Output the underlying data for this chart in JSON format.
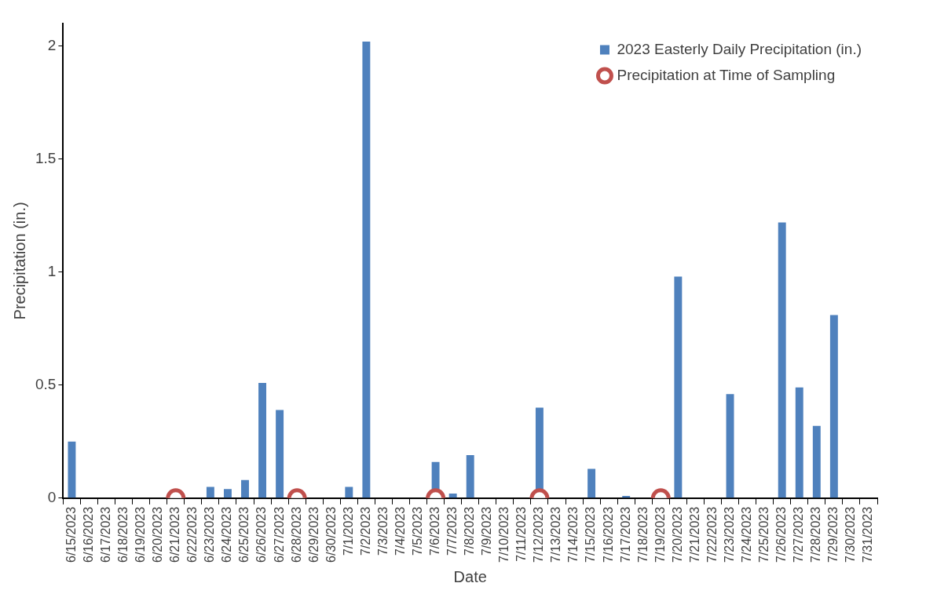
{
  "chart_data": {
    "type": "bar",
    "xlabel": "Date",
    "ylabel": "Precipitation (in.)",
    "categories": [
      "6/15/2023",
      "6/16/2023",
      "6/17/2023",
      "6/18/2023",
      "6/19/2023",
      "6/20/2023",
      "6/21/2023",
      "6/22/2023",
      "6/23/2023",
      "6/24/2023",
      "6/25/2023",
      "6/26/2023",
      "6/27/2023",
      "6/28/2023",
      "6/29/2023",
      "6/30/2023",
      "7/1/2023",
      "7/2/2023",
      "7/3/2023",
      "7/4/2023",
      "7/5/2023",
      "7/6/2023",
      "7/7/2023",
      "7/8/2023",
      "7/9/2023",
      "7/10/2023",
      "7/11/2023",
      "7/12/2023",
      "7/13/2023",
      "7/14/2023",
      "7/15/2023",
      "7/16/2023",
      "7/17/2023",
      "7/18/2023",
      "7/19/2023",
      "7/20/2023",
      "7/21/2023",
      "7/22/2023",
      "7/23/2023",
      "7/24/2023",
      "7/25/2023",
      "7/26/2023",
      "7/27/2023",
      "7/28/2023",
      "7/29/2023",
      "7/30/2023",
      "7/31/2023"
    ],
    "series": [
      {
        "name": "2023 Easterly Daily Precipitation (in.)",
        "color": "#4f81bd",
        "values": [
          0.25,
          0,
          0,
          0,
          0,
          0,
          0,
          0,
          0.05,
          0.04,
          0.08,
          0.51,
          0.39,
          0,
          0,
          0,
          0.05,
          2.02,
          0,
          0,
          0,
          0.16,
          0.02,
          0.19,
          0,
          0,
          0,
          0.4,
          0,
          0,
          0.13,
          0,
          0.01,
          0,
          0,
          0.98,
          0,
          0,
          0.46,
          0,
          0,
          1.22,
          0.49,
          0.32,
          0.81,
          0,
          0
        ]
      },
      {
        "type": "scatter",
        "name": "Precipitation at Time of Sampling",
        "color": "#c0504d",
        "marker": "circle",
        "x": [
          "6/21/2023",
          "6/28/2023",
          "7/6/2023",
          "7/12/2023",
          "7/19/2023"
        ],
        "values": [
          0,
          0,
          0,
          0,
          0
        ]
      }
    ],
    "ylim": [
      0,
      2.1
    ],
    "yticks": [
      0,
      0.5,
      1,
      1.5,
      2
    ],
    "grid": false,
    "legend": "top right"
  }
}
